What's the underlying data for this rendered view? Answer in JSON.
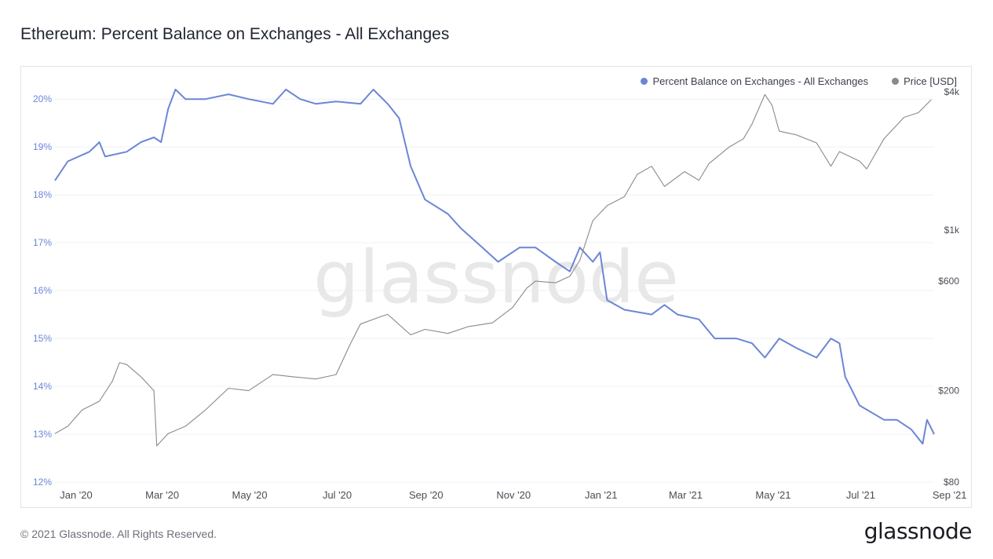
{
  "page": {
    "title": "Ethereum: Percent Balance on Exchanges - All Exchanges",
    "copyright": "© 2021 Glassnode. All Rights Reserved.",
    "logo_text": "glassnode",
    "watermark": "glassnode"
  },
  "chart_data": {
    "type": "line",
    "title": "Ethereum: Percent Balance on Exchanges - All Exchanges",
    "legend": {
      "position": "top-right",
      "entries": [
        {
          "name": "Percent Balance on Exchanges - All Exchanges",
          "color": "#6b86d6"
        },
        {
          "name": "Price [USD]",
          "color": "#8a8a8a"
        }
      ]
    },
    "x_axis": {
      "type": "month",
      "range": [
        "2020-01-01",
        "2021-09-05"
      ],
      "tick_labels": [
        "Jan '20",
        "Mar '20",
        "May '20",
        "Jul '20",
        "Sep '20",
        "Nov '20",
        "Jan '21",
        "Mar '21",
        "May '21",
        "Jul '21",
        "Sep '21"
      ]
    },
    "y_axis_left": {
      "unit": "percent",
      "range": [
        12,
        20.2
      ],
      "ticks": [
        12,
        13,
        14,
        15,
        16,
        17,
        18,
        19,
        20
      ],
      "tick_labels": [
        "12%",
        "13%",
        "14%",
        "15%",
        "16%",
        "17%",
        "18%",
        "19%",
        "20%"
      ]
    },
    "y_axis_right": {
      "scale": "log",
      "unit": "USD",
      "range": [
        80,
        4100
      ],
      "ticks": [
        80,
        200,
        600,
        1000,
        4000
      ],
      "tick_labels": [
        "$80",
        "$200",
        "$600",
        "$1k",
        "$4k"
      ]
    },
    "grid": true,
    "series": [
      {
        "name": "Percent Balance on Exchanges - All Exchanges",
        "axis": "left",
        "color": "#6b86d6",
        "points": [
          [
            "2020-01-01",
            18.3
          ],
          [
            "2020-01-10",
            18.7
          ],
          [
            "2020-01-25",
            18.9
          ],
          [
            "2020-02-01",
            19.1
          ],
          [
            "2020-02-05",
            18.8
          ],
          [
            "2020-02-20",
            18.9
          ],
          [
            "2020-03-01",
            19.1
          ],
          [
            "2020-03-10",
            19.2
          ],
          [
            "2020-03-15",
            19.1
          ],
          [
            "2020-03-20",
            19.8
          ],
          [
            "2020-03-25",
            20.2
          ],
          [
            "2020-04-01",
            20.0
          ],
          [
            "2020-04-15",
            20.0
          ],
          [
            "2020-05-01",
            20.1
          ],
          [
            "2020-05-15",
            20.0
          ],
          [
            "2020-06-01",
            19.9
          ],
          [
            "2020-06-10",
            20.2
          ],
          [
            "2020-06-20",
            20.0
          ],
          [
            "2020-07-01",
            19.9
          ],
          [
            "2020-07-15",
            19.95
          ],
          [
            "2020-08-01",
            19.9
          ],
          [
            "2020-08-10",
            20.2
          ],
          [
            "2020-08-20",
            19.9
          ],
          [
            "2020-08-28",
            19.6
          ],
          [
            "2020-09-05",
            18.6
          ],
          [
            "2020-09-15",
            17.9
          ],
          [
            "2020-10-01",
            17.6
          ],
          [
            "2020-10-10",
            17.3
          ],
          [
            "2020-10-25",
            16.9
          ],
          [
            "2020-11-05",
            16.6
          ],
          [
            "2020-11-20",
            16.9
          ],
          [
            "2020-12-01",
            16.9
          ],
          [
            "2020-12-15",
            16.6
          ],
          [
            "2020-12-25",
            16.4
          ],
          [
            "2021-01-01",
            16.9
          ],
          [
            "2021-01-10",
            16.6
          ],
          [
            "2021-01-15",
            16.8
          ],
          [
            "2021-01-20",
            15.8
          ],
          [
            "2021-02-01",
            15.6
          ],
          [
            "2021-02-20",
            15.5
          ],
          [
            "2021-03-01",
            15.7
          ],
          [
            "2021-03-10",
            15.5
          ],
          [
            "2021-03-25",
            15.4
          ],
          [
            "2021-04-05",
            15.0
          ],
          [
            "2021-04-20",
            15.0
          ],
          [
            "2021-05-01",
            14.9
          ],
          [
            "2021-05-10",
            14.6
          ],
          [
            "2021-05-20",
            15.0
          ],
          [
            "2021-06-01",
            14.8
          ],
          [
            "2021-06-15",
            14.6
          ],
          [
            "2021-06-25",
            15.0
          ],
          [
            "2021-07-01",
            14.9
          ],
          [
            "2021-07-05",
            14.2
          ],
          [
            "2021-07-15",
            13.6
          ],
          [
            "2021-08-01",
            13.3
          ],
          [
            "2021-08-10",
            13.3
          ],
          [
            "2021-08-20",
            13.1
          ],
          [
            "2021-08-28",
            12.8
          ],
          [
            "2021-08-31",
            13.3
          ],
          [
            "2021-09-05",
            13.0
          ]
        ]
      },
      {
        "name": "Price [USD]",
        "axis": "right",
        "color": "#8a8a8a",
        "points": [
          [
            "2020-01-01",
            130
          ],
          [
            "2020-01-10",
            140
          ],
          [
            "2020-01-20",
            165
          ],
          [
            "2020-02-01",
            180
          ],
          [
            "2020-02-10",
            220
          ],
          [
            "2020-02-15",
            265
          ],
          [
            "2020-02-20",
            260
          ],
          [
            "2020-03-01",
            230
          ],
          [
            "2020-03-10",
            200
          ],
          [
            "2020-03-12",
            115
          ],
          [
            "2020-03-20",
            130
          ],
          [
            "2020-04-01",
            140
          ],
          [
            "2020-04-15",
            165
          ],
          [
            "2020-05-01",
            205
          ],
          [
            "2020-05-15",
            200
          ],
          [
            "2020-06-01",
            235
          ],
          [
            "2020-06-15",
            230
          ],
          [
            "2020-07-01",
            225
          ],
          [
            "2020-07-15",
            235
          ],
          [
            "2020-07-25",
            320
          ],
          [
            "2020-08-01",
            390
          ],
          [
            "2020-08-15",
            420
          ],
          [
            "2020-08-20",
            430
          ],
          [
            "2020-09-05",
            350
          ],
          [
            "2020-09-15",
            370
          ],
          [
            "2020-10-01",
            355
          ],
          [
            "2020-10-15",
            380
          ],
          [
            "2020-11-01",
            395
          ],
          [
            "2020-11-15",
            460
          ],
          [
            "2020-11-25",
            560
          ],
          [
            "2020-12-01",
            600
          ],
          [
            "2020-12-15",
            590
          ],
          [
            "2020-12-25",
            630
          ],
          [
            "2021-01-01",
            740
          ],
          [
            "2021-01-10",
            1100
          ],
          [
            "2021-01-20",
            1280
          ],
          [
            "2021-02-01",
            1400
          ],
          [
            "2021-02-10",
            1750
          ],
          [
            "2021-02-20",
            1900
          ],
          [
            "2021-03-01",
            1550
          ],
          [
            "2021-03-15",
            1800
          ],
          [
            "2021-03-25",
            1650
          ],
          [
            "2021-04-01",
            1950
          ],
          [
            "2021-04-15",
            2300
          ],
          [
            "2021-04-25",
            2500
          ],
          [
            "2021-05-01",
            2900
          ],
          [
            "2021-05-10",
            3900
          ],
          [
            "2021-05-15",
            3500
          ],
          [
            "2021-05-20",
            2700
          ],
          [
            "2021-06-01",
            2600
          ],
          [
            "2021-06-15",
            2400
          ],
          [
            "2021-06-25",
            1900
          ],
          [
            "2021-07-01",
            2200
          ],
          [
            "2021-07-15",
            2000
          ],
          [
            "2021-07-20",
            1850
          ],
          [
            "2021-08-01",
            2500
          ],
          [
            "2021-08-15",
            3100
          ],
          [
            "2021-08-25",
            3250
          ],
          [
            "2021-09-03",
            3700
          ]
        ]
      }
    ]
  }
}
